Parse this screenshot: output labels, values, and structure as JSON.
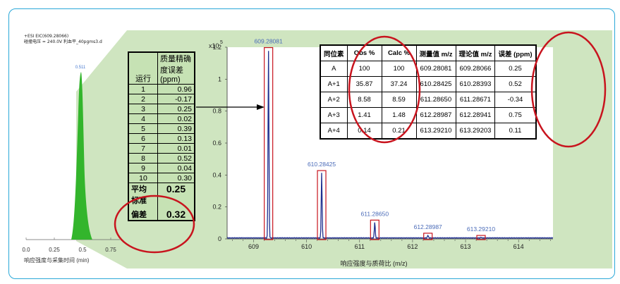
{
  "colors": {
    "frame": "#2aa8d8",
    "panel": "#cfe5c0",
    "peak": "#1f2f8f",
    "highlight": "#c8141e",
    "eic_fill": "#33b52c"
  },
  "eic": {
    "header_lines": [
      "+ESI EIC(609.28066)",
      "碰撞电压 = 240.0V  利血平_40pgms3.d"
    ],
    "peak_label": "0.511",
    "x_ticks": [
      "0.0",
      "0.25",
      "0.5",
      "0.75"
    ],
    "xlabel": "响应强度与采集时间 (min)"
  },
  "run_table": {
    "header_run": "运行",
    "header_err": "质量精确度误差(ppm)",
    "rows": [
      {
        "run": "1",
        "err": "0.96"
      },
      {
        "run": "2",
        "err": "-0.17"
      },
      {
        "run": "3",
        "err": "0.25"
      },
      {
        "run": "4",
        "err": "0.02"
      },
      {
        "run": "5",
        "err": "0.39"
      },
      {
        "run": "6",
        "err": "0.13"
      },
      {
        "run": "7",
        "err": "0.01"
      },
      {
        "run": "8",
        "err": "0.52"
      },
      {
        "run": "9",
        "err": "0.04"
      },
      {
        "run": "10",
        "err": "0.30"
      }
    ],
    "mean_label": "平均",
    "mean_value": "0.25",
    "sd_label_1": "标准",
    "sd_label_2": "偏差",
    "sd_value": "0.32"
  },
  "spectrum": {
    "y_multiplier": "x10",
    "y_exp": "5",
    "xlabel": "响应强度与质荷比 (m/z)"
  },
  "chart_data": {
    "type": "line",
    "ylabel": "x10^5",
    "xlabel": "响应强度与质荷比 (m/z)",
    "xlim": [
      608.5,
      614.65
    ],
    "ylim": [
      0,
      1.2
    ],
    "x_ticks": [
      609,
      610,
      611,
      612,
      613,
      614
    ],
    "y_ticks": [
      0,
      0.2,
      0.4,
      0.6,
      0.8,
      1,
      1.2
    ],
    "peaks": [
      {
        "mz": 609.28081,
        "label": "609.28081",
        "intensity": 1.18
      },
      {
        "mz": 610.28425,
        "label": "610.28425",
        "intensity": 0.41
      },
      {
        "mz": 611.2865,
        "label": "611.28650",
        "intensity": 0.1
      },
      {
        "mz": 612.28987,
        "label": "612.28987",
        "intensity": 0.018
      },
      {
        "mz": 613.2921,
        "label": "613.29210",
        "intensity": 0.004
      }
    ]
  },
  "iso_table": {
    "headers": [
      "同位素",
      "Obs %",
      "Calc %",
      "测量值 m/z",
      "理论值 m/z",
      "误差 (ppm)"
    ],
    "rows": [
      [
        "A",
        "100",
        "100",
        "609.28081",
        "609.28066",
        "0.25"
      ],
      [
        "A+1",
        "35.87",
        "37.24",
        "610.28425",
        "610.28393",
        "0.52"
      ],
      [
        "A+2",
        "8.58",
        "8.59",
        "611.28650",
        "611.28671",
        "-0.34"
      ],
      [
        "A+3",
        "1.41",
        "1.48",
        "612.28987",
        "612.28941",
        "0.75"
      ],
      [
        "A+4",
        "0.14",
        "0.21",
        "613.29210",
        "613.29203",
        "0.11"
      ]
    ]
  }
}
